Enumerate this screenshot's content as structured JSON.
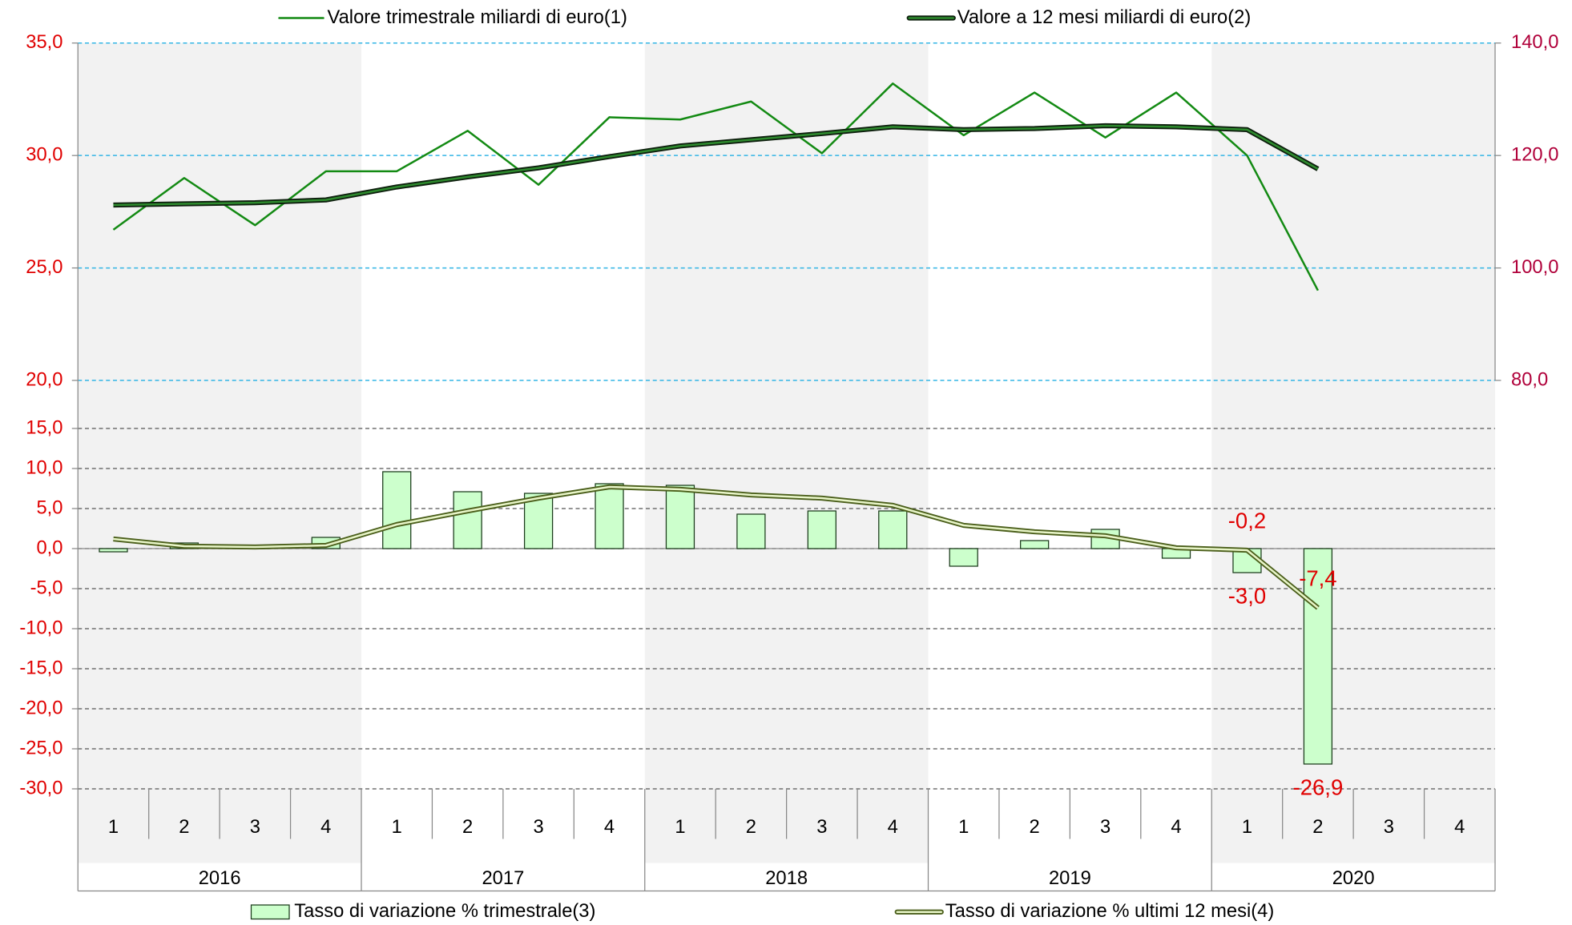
{
  "chart_data": [
    {
      "type": "line",
      "ylim": [
        20,
        35
      ],
      "yticks": [
        {
          "value": 20,
          "label": "20,0"
        },
        {
          "value": 25,
          "label": "25,0"
        },
        {
          "value": 30,
          "label": "30,0"
        },
        {
          "value": 35,
          "label": "35,0"
        }
      ],
      "y2lim": [
        80,
        140
      ],
      "y2ticks": [
        {
          "value": 80,
          "label": "80,0"
        },
        {
          "value": 100,
          "label": "100,0"
        },
        {
          "value": 120,
          "label": "120,0"
        },
        {
          "value": 140,
          "label": "140,0"
        }
      ],
      "ytick_color": "#e00000",
      "y2tick_color": "#b0003a",
      "grid": true,
      "grid_color": "#33b5e5",
      "series": [
        {
          "name": "Valore trimestrale miliardi di euro(1)",
          "color": "#138a13",
          "values": [
            26.7,
            29.0,
            26.9,
            29.3,
            29.3,
            31.1,
            28.7,
            31.7,
            31.6,
            32.4,
            30.1,
            33.2,
            30.9,
            32.8,
            30.8,
            32.8,
            30.0,
            24.0,
            null,
            null
          ]
        },
        {
          "name": "Valore a 12 mesi miliardi di euro(2)",
          "color": "#2e8b2e",
          "outline": "#0d1f0d",
          "axis": "y2",
          "values": [
            111.2,
            111.4,
            111.6,
            112.1,
            114.4,
            116.2,
            117.8,
            119.8,
            121.7,
            122.8,
            123.9,
            125.1,
            124.6,
            124.8,
            125.3,
            125.1,
            124.6,
            117.6,
            null,
            null
          ]
        }
      ]
    },
    {
      "type": "bar",
      "categories": [
        "1",
        "2",
        "3",
        "4",
        "1",
        "2",
        "3",
        "4",
        "1",
        "2",
        "3",
        "4",
        "1",
        "2",
        "3",
        "4",
        "1",
        "2",
        "3",
        "4"
      ],
      "groups": [
        "2016",
        "2017",
        "2018",
        "2019",
        "2020"
      ],
      "ylim": [
        -30,
        15
      ],
      "yticks": [
        {
          "value": -30,
          "label": "-30,0"
        },
        {
          "value": -25,
          "label": "-25,0"
        },
        {
          "value": -20,
          "label": "-20,0"
        },
        {
          "value": -15,
          "label": "-15,0"
        },
        {
          "value": -10,
          "label": "-10,0"
        },
        {
          "value": -5,
          "label": "-5,0"
        },
        {
          "value": 0,
          "label": "0,0"
        },
        {
          "value": 5,
          "label": "5,0"
        },
        {
          "value": 10,
          "label": "10,0"
        },
        {
          "value": 15,
          "label": "15,0"
        }
      ],
      "grid": true,
      "grid_color": "#555555",
      "label_color": "#e00000",
      "series": [
        {
          "name": "Tasso di variazione % trimestrale(3)",
          "type": "bar",
          "color": "#ccffcc",
          "outline": "#1a3a1a",
          "values": [
            -0.4,
            0.7,
            0.1,
            1.4,
            9.6,
            7.1,
            6.9,
            8.1,
            7.9,
            4.3,
            4.7,
            4.7,
            -2.2,
            1.0,
            2.4,
            -1.2,
            -3.0,
            -26.9,
            null,
            null
          ],
          "value_labels": [
            null,
            null,
            null,
            null,
            null,
            null,
            null,
            null,
            null,
            null,
            null,
            null,
            null,
            null,
            null,
            null,
            "-3,0",
            "-26,9",
            null,
            null
          ]
        },
        {
          "name": "Tasso di variazione % ultimi 12 mesi(4)",
          "type": "line",
          "color": "#e8f5c8",
          "outline": "#4a5e1a",
          "values": [
            1.2,
            0.3,
            0.2,
            0.4,
            3.0,
            4.7,
            6.3,
            7.7,
            7.4,
            6.7,
            6.3,
            5.4,
            2.9,
            2.1,
            1.6,
            0.1,
            -0.2,
            -7.4,
            null,
            null
          ],
          "value_labels": [
            null,
            null,
            null,
            null,
            null,
            null,
            null,
            null,
            null,
            null,
            null,
            null,
            null,
            null,
            null,
            null,
            "-0,2",
            "-7,4",
            null,
            null
          ]
        }
      ]
    }
  ]
}
